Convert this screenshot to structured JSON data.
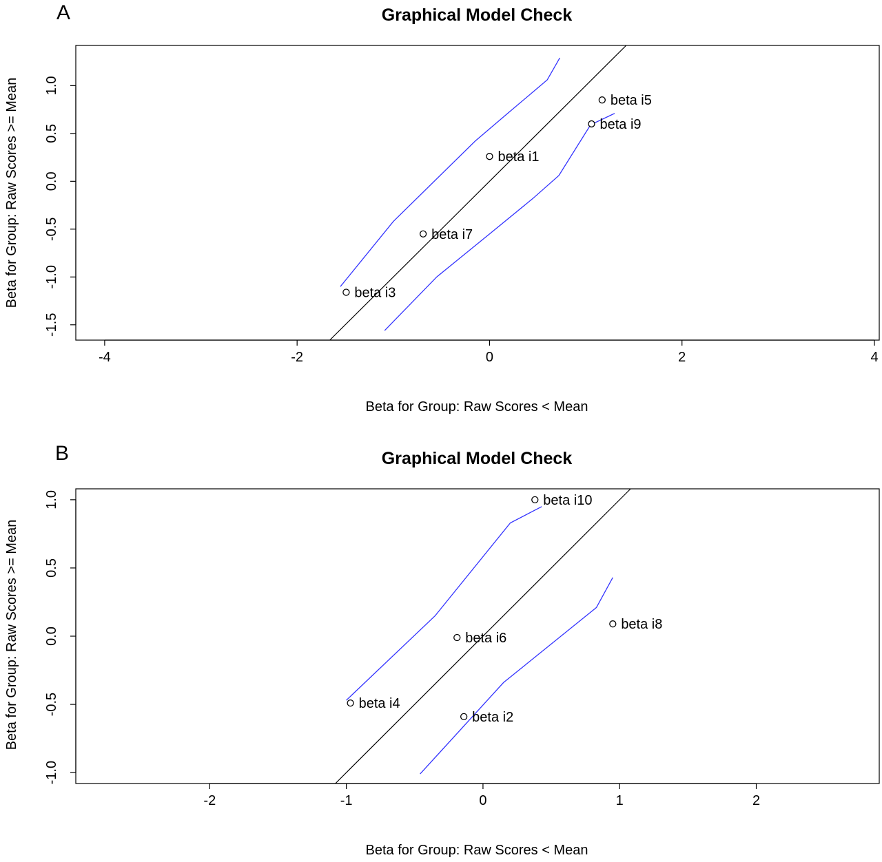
{
  "chart_data": [
    {
      "panel_letter": "A",
      "type": "scatter",
      "title": "Graphical Model Check",
      "xlabel": "Beta for Group: Raw Scores < Mean",
      "ylabel": "Beta for Group: Raw Scores >= Mean",
      "xlim": [
        -4.3,
        4.05
      ],
      "ylim": [
        -1.66,
        1.42
      ],
      "xticks": [
        -4,
        -2,
        0,
        2,
        4
      ],
      "yticks": [
        -1.5,
        -1.0,
        -0.5,
        0.0,
        0.5,
        1.0
      ],
      "xtick_labels": [
        "-4",
        "-2",
        "0",
        "2",
        "4"
      ],
      "ytick_labels": [
        "-1.5",
        "-1.0",
        "-0.5",
        "0.0",
        "0.5",
        "1.0"
      ],
      "grid": false,
      "colors": {
        "identity_line": "#000000",
        "confidence_band": "#3333ff",
        "points": "#000000"
      },
      "points": [
        {
          "label": "beta i5",
          "x": 1.17,
          "y": 0.85
        },
        {
          "label": "beta i9",
          "x": 1.06,
          "y": 0.6
        },
        {
          "label": "beta i1",
          "x": 0.0,
          "y": 0.26
        },
        {
          "label": "beta i7",
          "x": -0.69,
          "y": -0.55
        },
        {
          "label": "beta i3",
          "x": -1.49,
          "y": -1.16
        }
      ],
      "identity_line": {
        "slope": 1,
        "intercept": 0
      },
      "band_upper": [
        [
          -1.55,
          -1.1
        ],
        [
          -1.0,
          -0.42
        ],
        [
          -0.15,
          0.42
        ],
        [
          0.2,
          0.72
        ],
        [
          0.6,
          1.06
        ],
        [
          0.73,
          1.29
        ]
      ],
      "band_lower": [
        [
          -1.09,
          -1.56
        ],
        [
          -0.55,
          -1.0
        ],
        [
          0.0,
          -0.55
        ],
        [
          0.45,
          -0.18
        ],
        [
          0.72,
          0.06
        ],
        [
          1.05,
          0.59
        ],
        [
          1.3,
          0.71
        ]
      ]
    },
    {
      "panel_letter": "B",
      "type": "scatter",
      "title": "Graphical Model Check",
      "xlabel": "Beta for Group: Raw Scores < Mean",
      "ylabel": "Beta for Group: Raw Scores >= Mean",
      "xlim": [
        -2.98,
        2.9
      ],
      "ylim": [
        -1.08,
        1.08
      ],
      "xticks": [
        -2,
        -1,
        0,
        1,
        2
      ],
      "yticks": [
        -1.0,
        -0.5,
        0.0,
        0.5,
        1.0
      ],
      "xtick_labels": [
        "-2",
        "-1",
        "0",
        "1",
        "2"
      ],
      "ytick_labels": [
        "-1.0",
        "-0.5",
        "0.0",
        "0.5",
        "1.0"
      ],
      "grid": false,
      "colors": {
        "identity_line": "#000000",
        "confidence_band": "#3333ff",
        "points": "#000000"
      },
      "points": [
        {
          "label": "beta i10",
          "x": 0.38,
          "y": 1.0
        },
        {
          "label": "beta i8",
          "x": 0.95,
          "y": 0.09
        },
        {
          "label": "beta i6",
          "x": -0.19,
          "y": -0.01
        },
        {
          "label": "beta i4",
          "x": -0.97,
          "y": -0.49
        },
        {
          "label": "beta i2",
          "x": -0.14,
          "y": -0.59
        }
      ],
      "identity_line": {
        "slope": 1,
        "intercept": 0
      },
      "band_upper": [
        [
          -1.0,
          -0.47
        ],
        [
          -0.35,
          0.15
        ],
        [
          0.2,
          0.83
        ],
        [
          0.43,
          0.95
        ]
      ],
      "band_lower": [
        [
          -0.46,
          -1.01
        ],
        [
          0.15,
          -0.34
        ],
        [
          0.83,
          0.21
        ],
        [
          0.95,
          0.43
        ]
      ]
    }
  ]
}
